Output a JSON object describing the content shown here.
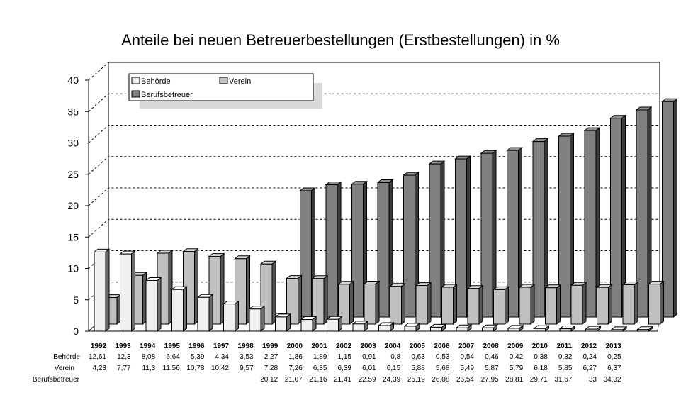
{
  "chart_data": {
    "type": "bar",
    "title": "Anteile bei neuen Betreuerbestellungen (Erstbestellungen) in %",
    "xlabel": "",
    "ylabel": "",
    "ylim": [
      0,
      40
    ],
    "yticks": [
      "0",
      "5",
      "10",
      "15",
      "20",
      "25",
      "30",
      "35",
      "40"
    ],
    "grid": true,
    "legend_placement": "top-left",
    "categories": [
      "1992",
      "1993",
      "1994",
      "1995",
      "1996",
      "1997",
      "1998",
      "1999",
      "2000",
      "2001",
      "2002",
      "2003",
      "2004",
      "2005",
      "2006",
      "2007",
      "2008",
      "2009",
      "2010",
      "2011",
      "2012",
      "2013"
    ],
    "series": [
      {
        "name": "Behörde",
        "color": "#f0f0f0",
        "values": [
          12.61,
          12.3,
          8.08,
          6.64,
          5.39,
          4.34,
          3.53,
          2.27,
          1.86,
          1.89,
          1.15,
          0.91,
          0.8,
          0.63,
          0.53,
          0.54,
          0.46,
          0.42,
          0.38,
          0.32,
          0.24,
          0.25
        ],
        "labels": [
          "12,61",
          "12,3",
          "8,08",
          "6,64",
          "5,39",
          "4,34",
          "3,53",
          "2,27",
          "1,86",
          "1,89",
          "1,15",
          "0,91",
          "0,8",
          "0,63",
          "0,53",
          "0,54",
          "0,46",
          "0,42",
          "0,38",
          "0,32",
          "0,24",
          "0,25"
        ]
      },
      {
        "name": "Verein",
        "color": "#c0c0c0",
        "values": [
          4.23,
          7.77,
          11.3,
          11.56,
          10.78,
          10.42,
          9.57,
          7.28,
          7.26,
          6.35,
          6.39,
          6.01,
          6.15,
          5.88,
          5.68,
          5.49,
          5.87,
          5.79,
          6.18,
          5.85,
          6.27,
          6.37
        ],
        "labels": [
          "4,23",
          "7,77",
          "11,3",
          "11,56",
          "10,78",
          "10,42",
          "9,57",
          "7,28",
          "7,26",
          "6,35",
          "6,39",
          "6,01",
          "6,15",
          "5,88",
          "5,68",
          "5,49",
          "5,87",
          "5,79",
          "6,18",
          "5,85",
          "6,27",
          "6,37"
        ]
      },
      {
        "name": "Berufsbetreuer",
        "color": "#808080",
        "values": [
          null,
          null,
          null,
          null,
          null,
          null,
          null,
          20.12,
          21.07,
          21.16,
          21.41,
          22.59,
          24.39,
          25.19,
          26.08,
          26.54,
          27.95,
          28.81,
          29.71,
          31.67,
          33,
          34.32
        ],
        "labels": [
          "",
          "",
          "",
          "",
          "",
          "",
          "",
          "20,12",
          "21,07",
          "21,16",
          "21,41",
          "22,59",
          "24,39",
          "25,19",
          "26,08",
          "26,54",
          "27,95",
          "28,81",
          "29,71",
          "31,67",
          "33",
          "34,32"
        ]
      }
    ]
  }
}
